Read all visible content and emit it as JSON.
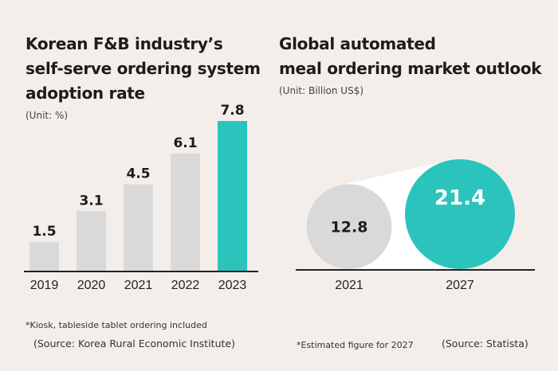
{
  "left": {
    "title_lines": [
      "Korean F&B industry’s",
      "self-serve ordering system",
      "adoption rate"
    ],
    "unit": "(Unit: %)",
    "note": "*Kiosk, tableside tablet ordering included",
    "source": "(Source: Korea Rural Economic Institute)"
  },
  "right": {
    "title_lines": [
      "Global automated",
      "meal ordering market outlook"
    ],
    "unit": "(Unit: Billion US$)",
    "note": "*Estimated figure for 2027",
    "source": "(Source: Statista)"
  },
  "colors": {
    "background": "#f3eeea",
    "gray": "#d9d9d9",
    "teal": "#2bc4bc",
    "axis": "#222222",
    "cone": "#ffffff"
  },
  "chart_data": [
    {
      "type": "bar",
      "title": "Korean F&B industry’s self-serve ordering system adoption rate",
      "unit": "%",
      "categories": [
        "2019",
        "2020",
        "2021",
        "2022",
        "2023"
      ],
      "values": [
        1.5,
        3.1,
        4.5,
        6.1,
        7.8
      ],
      "value_labels": [
        "1.5",
        "3.1",
        "4.5",
        "6.1",
        "7.8"
      ],
      "highlight_index": 4,
      "ylim": [
        0,
        7.8
      ]
    },
    {
      "type": "bubble",
      "title": "Global automated meal ordering market outlook",
      "unit": "Billion US$",
      "categories": [
        "2021",
        "2027"
      ],
      "values": [
        12.8,
        21.4
      ],
      "value_labels": [
        "12.8",
        "21.4"
      ],
      "highlight_index": 1
    }
  ]
}
